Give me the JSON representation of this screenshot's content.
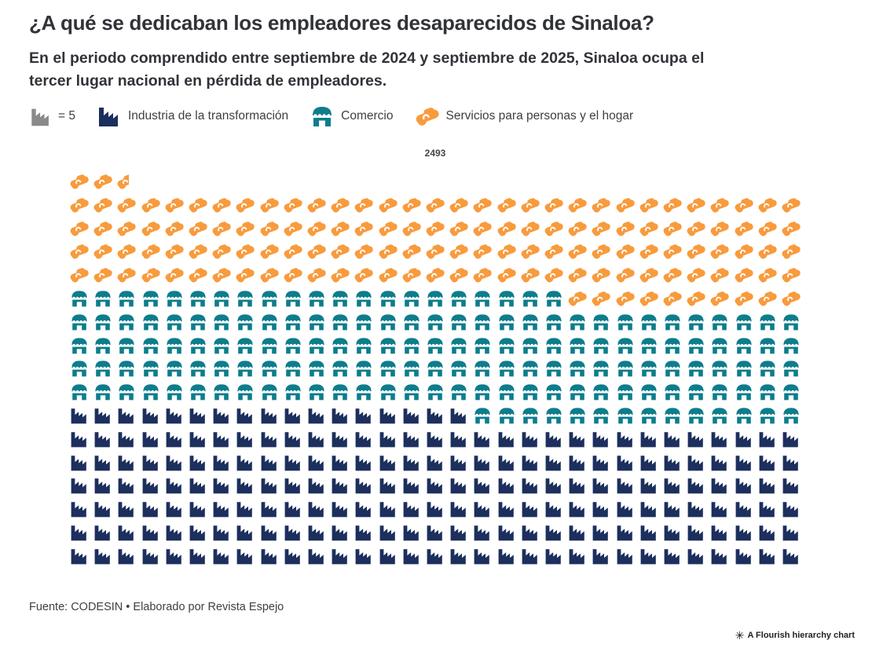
{
  "header": {
    "title": "¿A qué se dedicaban los empleadores desaparecidos de Sinaloa?",
    "subtitle_lines": [
      "En el periodo comprendido entre septiembre de 2024 y septiembre de 2025, Sinaloa ocupa el",
      "tercer lugar nacional en pérdida de empleadores."
    ]
  },
  "legend": {
    "unit": {
      "label": "= 5",
      "icon": "factory-icon",
      "color": "#8a8a8a"
    },
    "items": [
      {
        "label": "Industria de la transformación",
        "icon": "factory-icon",
        "color": "#1c2f5d"
      },
      {
        "label": "Comercio",
        "icon": "store-icon",
        "color": "#0d7d8c"
      },
      {
        "label": "Servicios para personas y el hogar",
        "icon": "handshake-icon",
        "color": "#f89b3d"
      }
    ]
  },
  "chart_data": {
    "type": "pictogram",
    "unit_value": 5,
    "columns": 31,
    "fill_order": "bottom-up, left-to-right",
    "total": 2493,
    "total_label": "2493",
    "categories": [
      "Industria de la transformación",
      "Comercio",
      "Servicios para personas y el hogar"
    ],
    "values": [
      1015,
      795,
      683
    ],
    "colors": [
      "#1c2f5d",
      "#0d7d8c",
      "#f89b3d"
    ],
    "icons": [
      "factory",
      "store",
      "handshake"
    ],
    "legend_position": "top-left",
    "grid": "off"
  },
  "footer": {
    "source": "Fuente: CODESIN • Elaborado por Revista Espejo",
    "credit": "A Flourish hierarchy chart",
    "credit_icon_glyph": "✳"
  }
}
